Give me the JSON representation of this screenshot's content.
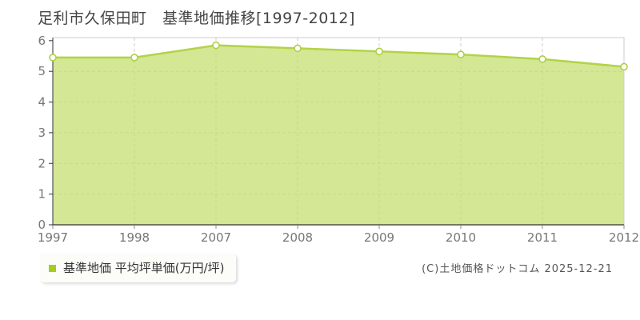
{
  "chart_data": {
    "type": "area",
    "title": "足利市久保田町　基準地価推移[1997-2012]",
    "categories": [
      "1997",
      "1998",
      "2007",
      "2008",
      "2009",
      "2010",
      "2011",
      "2012"
    ],
    "series": [
      {
        "name": "基準地価 平均坪単価(万円/坪)",
        "values": [
          5.45,
          5.45,
          5.85,
          5.75,
          5.65,
          5.55,
          5.4,
          5.15
        ]
      }
    ],
    "xlabel": "",
    "ylabel": "",
    "ylim": [
      0,
      6
    ],
    "yticks": [
      0,
      1,
      2,
      3,
      4,
      5,
      6
    ],
    "grid": true,
    "legend": {
      "label": "基準地価 平均坪単価(万円/坪)",
      "position": "bottom-left"
    },
    "colors": {
      "area_fill": "#c5df70",
      "area_opacity": 0.75,
      "line": "#b2d348",
      "marker_fill": "#ffffff",
      "marker_stroke": "#aed045",
      "legend_marker": "#a6cc1e",
      "grid_line": "#cccccc",
      "border_line": "#cccccc",
      "axis_line": "#333333",
      "tick_label": "#777777"
    }
  },
  "footer": {
    "copyright": "(C)土地価格ドットコム 2025-12-21"
  }
}
